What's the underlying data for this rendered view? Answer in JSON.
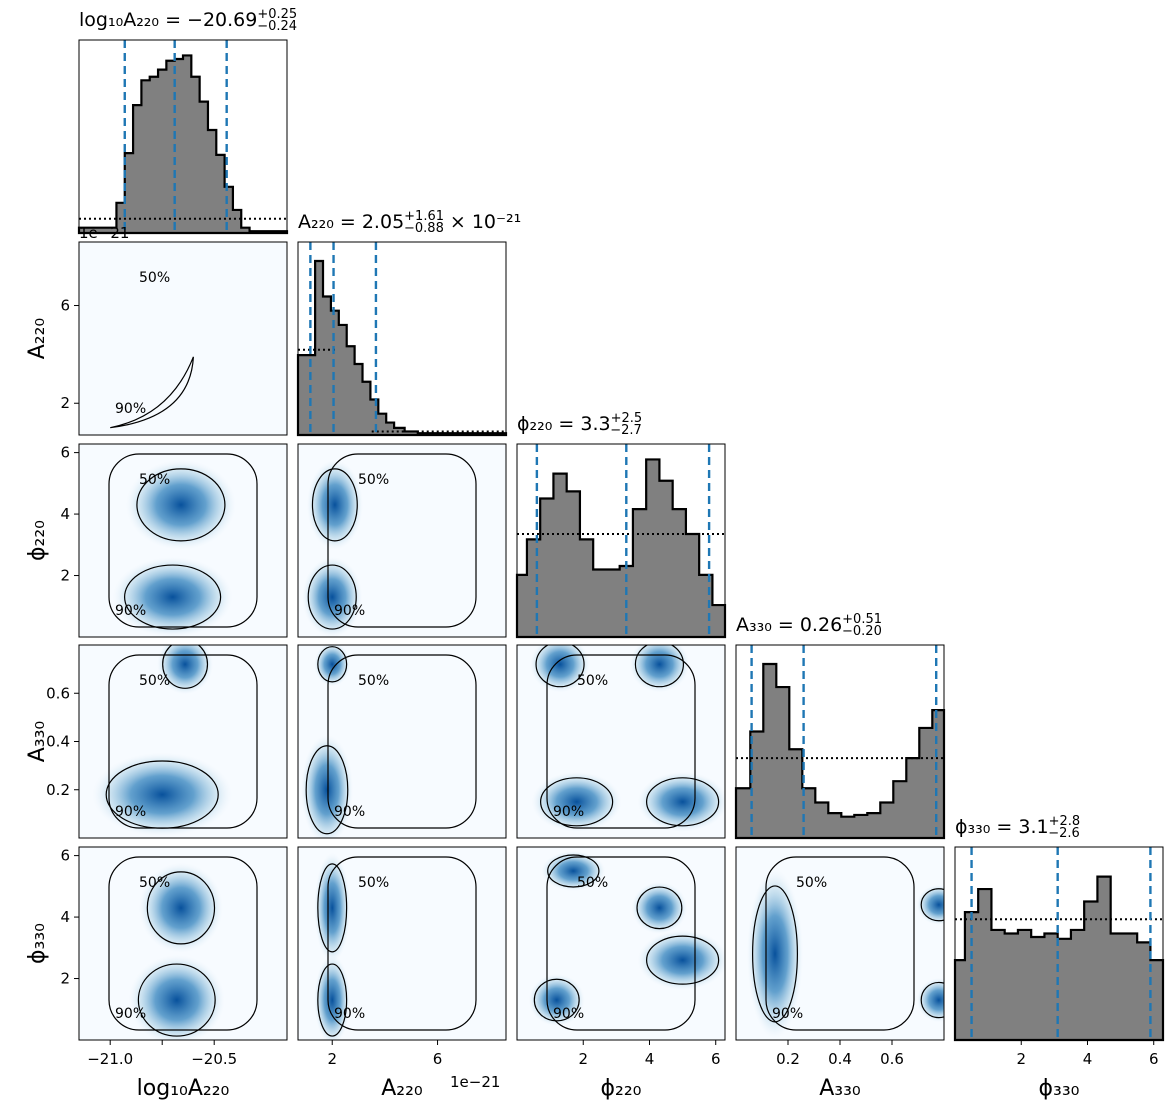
{
  "chart_data": {
    "type": "corner",
    "parameters": [
      {
        "key": "logA220",
        "axis_label": "log₁₀A₂₂₀",
        "range": [
          -21.15,
          -20.15
        ],
        "ticks": [
          -21.0,
          -20.75,
          -20.5
        ],
        "tick_labels": [
          "−21.0",
          "",
          "−20.5"
        ],
        "title": {
          "prefix": "log₁₀A₂₂₀ = ",
          "median": "−20.69",
          "plus": "+0.25",
          "minus": "−0.24",
          "suffix": ""
        },
        "quantiles": [
          -20.93,
          -20.69,
          -20.44
        ]
      },
      {
        "key": "A220",
        "axis_label": "A₂₂₀",
        "range": [
          0.7,
          8.6
        ],
        "unit_scale": "1e−21",
        "ticks": [
          2,
          6
        ],
        "tick_labels": [
          "2",
          "6"
        ],
        "title": {
          "prefix": "A₂₂₀ = ",
          "median": "2.05",
          "plus": "+1.61",
          "minus": "−0.88",
          "suffix": " × 10⁻²¹"
        },
        "quantiles": [
          1.17,
          2.05,
          3.66
        ]
      },
      {
        "key": "phi220",
        "axis_label": "ϕ₂₂₀",
        "range": [
          0,
          6.28
        ],
        "ticks": [
          2,
          4,
          6
        ],
        "tick_labels": [
          "2",
          "4",
          "6"
        ],
        "title": {
          "prefix": "ϕ₂₂₀ = ",
          "median": "3.3",
          "plus": "+2.5",
          "minus": "−2.7",
          "suffix": ""
        },
        "quantiles": [
          0.6,
          3.3,
          5.8
        ]
      },
      {
        "key": "A330",
        "axis_label": "A₃₃₀",
        "range": [
          0,
          0.8
        ],
        "ticks": [
          0.2,
          0.4,
          0.6
        ],
        "tick_labels": [
          "0.2",
          "0.4",
          "0.6"
        ],
        "title": {
          "prefix": "A₃₃₀ = ",
          "median": "0.26",
          "plus": "+0.51",
          "minus": "−0.20",
          "suffix": ""
        },
        "quantiles": [
          0.06,
          0.26,
          0.77
        ]
      },
      {
        "key": "phi330",
        "axis_label": "ϕ₃₃₀",
        "range": [
          0,
          6.28
        ],
        "ticks": [
          2,
          4,
          6
        ],
        "tick_labels": [
          "2",
          "4",
          "6"
        ],
        "title": {
          "prefix": "ϕ₃₃₀ = ",
          "median": "3.1",
          "plus": "+2.8",
          "minus": "−2.6",
          "suffix": ""
        },
        "quantiles": [
          0.5,
          3.1,
          5.9
        ]
      }
    ],
    "y_tick_labels": {
      "A220": {
        "ticks": [
          2,
          6
        ],
        "labels": [
          "2",
          "6"
        ]
      },
      "phi220": {
        "ticks": [
          2,
          4,
          6
        ],
        "labels": [
          "2",
          "4",
          "6"
        ]
      },
      "A330": {
        "ticks": [
          0.2,
          0.4,
          0.6
        ],
        "labels": [
          "0.2",
          "0.4",
          "0.6"
        ]
      },
      "phi330": {
        "ticks": [
          2,
          4,
          6
        ],
        "labels": [
          "2",
          "4",
          "6"
        ]
      }
    },
    "marginals": {
      "logA220": {
        "x": [
          -20.99,
          -20.95,
          -20.91,
          -20.87,
          -20.83,
          -20.79,
          -20.75,
          -20.71,
          -20.67,
          -20.63,
          -20.59,
          -20.55,
          -20.51,
          -20.47,
          -20.43,
          -20.39,
          -20.35,
          -20.31
        ],
        "y": [
          0.03,
          0.17,
          0.45,
          0.72,
          0.86,
          0.88,
          0.92,
          0.97,
          0.98,
          1.0,
          0.88,
          0.74,
          0.58,
          0.44,
          0.26,
          0.13,
          0.03,
          0.01
        ],
        "prior": 0.08
      },
      "A220": {
        "x": [
          1.2,
          1.5,
          1.8,
          2.1,
          2.4,
          2.7,
          3.0,
          3.3,
          3.6,
          3.9,
          4.2,
          4.5,
          5.0,
          5.5,
          6.0,
          7.0,
          8.0
        ],
        "y": [
          0.45,
          0.98,
          0.78,
          0.7,
          0.62,
          0.5,
          0.4,
          0.3,
          0.2,
          0.12,
          0.07,
          0.04,
          0.02,
          0.01,
          0.01,
          0.01,
          0.01
        ],
        "prior_left": 0.48,
        "prior_right": 0.02
      },
      "phi220": {
        "x": [
          0.1,
          0.5,
          0.9,
          1.3,
          1.7,
          2.1,
          2.5,
          2.9,
          3.3,
          3.7,
          4.1,
          4.5,
          4.9,
          5.3,
          5.7,
          6.1
        ],
        "y": [
          0.35,
          0.55,
          0.78,
          0.92,
          0.82,
          0.55,
          0.38,
          0.38,
          0.4,
          0.72,
          1.0,
          0.88,
          0.72,
          0.58,
          0.35,
          0.18
        ],
        "prior": 0.58
      },
      "A330": {
        "x": [
          0.03,
          0.08,
          0.13,
          0.18,
          0.23,
          0.28,
          0.33,
          0.38,
          0.43,
          0.48,
          0.53,
          0.58,
          0.63,
          0.68,
          0.73,
          0.78
        ],
        "y": [
          0.28,
          0.6,
          0.98,
          0.85,
          0.5,
          0.28,
          0.2,
          0.14,
          0.12,
          0.13,
          0.14,
          0.2,
          0.32,
          0.45,
          0.62,
          0.72
        ],
        "prior": 0.45
      },
      "phi330": {
        "x": [
          0.1,
          0.5,
          0.9,
          1.3,
          1.7,
          2.1,
          2.5,
          2.9,
          3.3,
          3.7,
          4.1,
          4.5,
          4.9,
          5.3,
          5.7,
          6.1
        ],
        "y": [
          0.45,
          0.72,
          0.85,
          0.62,
          0.6,
          0.62,
          0.58,
          0.6,
          0.57,
          0.62,
          0.78,
          0.92,
          0.6,
          0.6,
          0.55,
          0.45
        ],
        "prior": 0.68
      }
    },
    "contour_labels": [
      "50%",
      "90%"
    ],
    "axis_multiplier_label": "1e−21"
  },
  "colors": {
    "hist_fill": "#808080",
    "hist_edge": "#000000",
    "quantile_line": "#1f77b4",
    "density_low": "#f7fbff",
    "density_high": "#08519c"
  }
}
